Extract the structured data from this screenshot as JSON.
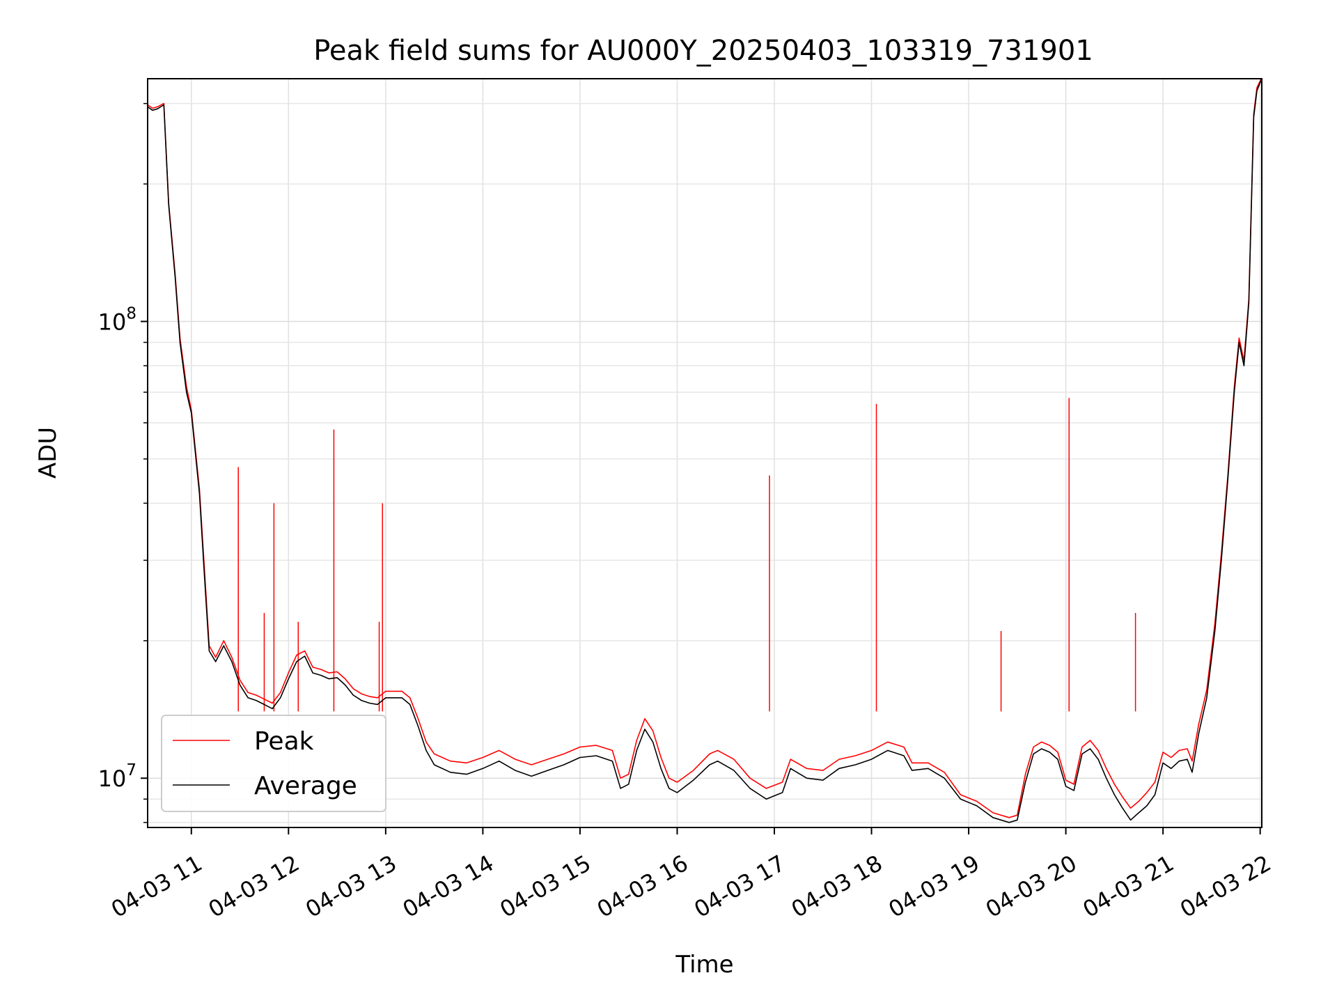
{
  "chart_data": {
    "type": "line",
    "title": "Peak field sums for AU000Y_20250403_103319_731901",
    "xlabel": "Time",
    "ylabel": "ADU",
    "yscale": "log",
    "ylim": [
      7800000,
      340000000
    ],
    "xlim": [
      "04-03 10:33",
      "04-03 22:01"
    ],
    "grid": true,
    "legend_position": "lower-left",
    "x_ticks": [
      {
        "t": "04-03 11:00",
        "label": "04-03 11"
      },
      {
        "t": "04-03 12:00",
        "label": "04-03 12"
      },
      {
        "t": "04-03 13:00",
        "label": "04-03 13"
      },
      {
        "t": "04-03 14:00",
        "label": "04-03 14"
      },
      {
        "t": "04-03 15:00",
        "label": "04-03 15"
      },
      {
        "t": "04-03 16:00",
        "label": "04-03 16"
      },
      {
        "t": "04-03 17:00",
        "label": "04-03 17"
      },
      {
        "t": "04-03 18:00",
        "label": "04-03 18"
      },
      {
        "t": "04-03 19:00",
        "label": "04-03 19"
      },
      {
        "t": "04-03 20:00",
        "label": "04-03 20"
      },
      {
        "t": "04-03 21:00",
        "label": "04-03 21"
      },
      {
        "t": "04-03 22:00",
        "label": "04-03 22"
      }
    ],
    "y_major_ticks": [
      {
        "value": 10000000,
        "base": "10",
        "exp": "7"
      },
      {
        "value": 100000000,
        "base": "10",
        "exp": "8"
      }
    ],
    "y_minor_ticks": [
      8000000,
      9000000,
      20000000,
      30000000,
      40000000,
      50000000,
      60000000,
      70000000,
      80000000,
      90000000,
      200000000,
      300000000
    ],
    "series": [
      {
        "name": "Average",
        "color": "#000000",
        "points": [
          [
            "04-03 10:33",
            295000000
          ],
          [
            "04-03 10:36",
            290000000
          ],
          [
            "04-03 10:39",
            292000000
          ],
          [
            "04-03 10:43",
            298000000
          ],
          [
            "04-03 10:46",
            180000000
          ],
          [
            "04-03 10:50",
            125000000
          ],
          [
            "04-03 10:53",
            90000000
          ],
          [
            "04-03 10:57",
            70000000
          ],
          [
            "04-03 11:00",
            63000000
          ],
          [
            "04-03 11:05",
            42000000
          ],
          [
            "04-03 11:08",
            28000000
          ],
          [
            "04-03 11:11",
            19000000
          ],
          [
            "04-03 11:15",
            18000000
          ],
          [
            "04-03 11:20",
            19500000
          ],
          [
            "04-03 11:25",
            18000000
          ],
          [
            "04-03 11:30",
            16000000
          ],
          [
            "04-03 11:35",
            15000000
          ],
          [
            "04-03 11:40",
            14800000
          ],
          [
            "04-03 11:45",
            14500000
          ],
          [
            "04-03 11:50",
            14200000
          ],
          [
            "04-03 11:55",
            15000000
          ],
          [
            "04-03 12:00",
            16500000
          ],
          [
            "04-03 12:05",
            18000000
          ],
          [
            "04-03 12:10",
            18500000
          ],
          [
            "04-03 12:15",
            17000000
          ],
          [
            "04-03 12:20",
            16800000
          ],
          [
            "04-03 12:25",
            16500000
          ],
          [
            "04-03 12:30",
            16600000
          ],
          [
            "04-03 12:35",
            16000000
          ],
          [
            "04-03 12:40",
            15200000
          ],
          [
            "04-03 12:45",
            14800000
          ],
          [
            "04-03 12:50",
            14600000
          ],
          [
            "04-03 12:55",
            14500000
          ],
          [
            "04-03 13:00",
            15000000
          ],
          [
            "04-03 13:10",
            15000000
          ],
          [
            "04-03 13:15",
            14500000
          ],
          [
            "04-03 13:20",
            13000000
          ],
          [
            "04-03 13:25",
            11500000
          ],
          [
            "04-03 13:30",
            10700000
          ],
          [
            "04-03 13:40",
            10300000
          ],
          [
            "04-03 13:50",
            10200000
          ],
          [
            "04-03 14:00",
            10500000
          ],
          [
            "04-03 14:10",
            10900000
          ],
          [
            "04-03 14:20",
            10400000
          ],
          [
            "04-03 14:30",
            10100000
          ],
          [
            "04-03 14:40",
            10400000
          ],
          [
            "04-03 14:50",
            10700000
          ],
          [
            "04-03 15:00",
            11100000
          ],
          [
            "04-03 15:10",
            11200000
          ],
          [
            "04-03 15:20",
            10900000
          ],
          [
            "04-03 15:25",
            9500000
          ],
          [
            "04-03 15:30",
            9700000
          ],
          [
            "04-03 15:35",
            11500000
          ],
          [
            "04-03 15:40",
            12800000
          ],
          [
            "04-03 15:45",
            12000000
          ],
          [
            "04-03 15:50",
            10500000
          ],
          [
            "04-03 15:55",
            9500000
          ],
          [
            "04-03 16:00",
            9300000
          ],
          [
            "04-03 16:10",
            9900000
          ],
          [
            "04-03 16:20",
            10700000
          ],
          [
            "04-03 16:25",
            10900000
          ],
          [
            "04-03 16:35",
            10400000
          ],
          [
            "04-03 16:45",
            9500000
          ],
          [
            "04-03 16:55",
            9000000
          ],
          [
            "04-03 17:05",
            9300000
          ],
          [
            "04-03 17:10",
            10500000
          ],
          [
            "04-03 17:20",
            10000000
          ],
          [
            "04-03 17:30",
            9900000
          ],
          [
            "04-03 17:40",
            10500000
          ],
          [
            "04-03 17:50",
            10700000
          ],
          [
            "04-03 18:00",
            11000000
          ],
          [
            "04-03 18:10",
            11500000
          ],
          [
            "04-03 18:20",
            11200000
          ],
          [
            "04-03 18:25",
            10400000
          ],
          [
            "04-03 18:35",
            10500000
          ],
          [
            "04-03 18:45",
            10000000
          ],
          [
            "04-03 18:55",
            9000000
          ],
          [
            "04-03 19:05",
            8700000
          ],
          [
            "04-03 19:15",
            8200000
          ],
          [
            "04-03 19:25",
            8000000
          ],
          [
            "04-03 19:30",
            8100000
          ],
          [
            "04-03 19:35",
            9800000
          ],
          [
            "04-03 19:40",
            11300000
          ],
          [
            "04-03 19:45",
            11600000
          ],
          [
            "04-03 19:50",
            11400000
          ],
          [
            "04-03 19:55",
            11000000
          ],
          [
            "04-03 20:00",
            9600000
          ],
          [
            "04-03 20:05",
            9400000
          ],
          [
            "04-03 20:10",
            11300000
          ],
          [
            "04-03 20:15",
            11600000
          ],
          [
            "04-03 20:20",
            11000000
          ],
          [
            "04-03 20:25",
            10000000
          ],
          [
            "04-03 20:30",
            9200000
          ],
          [
            "04-03 20:35",
            8600000
          ],
          [
            "04-03 20:40",
            8100000
          ],
          [
            "04-03 20:45",
            8400000
          ],
          [
            "04-03 20:50",
            8700000
          ],
          [
            "04-03 20:55",
            9200000
          ],
          [
            "04-03 21:00",
            10800000
          ],
          [
            "04-03 21:05",
            10500000
          ],
          [
            "04-03 21:10",
            10900000
          ],
          [
            "04-03 21:15",
            11000000
          ],
          [
            "04-03 21:18",
            10300000
          ],
          [
            "04-03 21:22",
            12500000
          ],
          [
            "04-03 21:27",
            15000000
          ],
          [
            "04-03 21:32",
            21000000
          ],
          [
            "04-03 21:36",
            30000000
          ],
          [
            "04-03 21:40",
            45000000
          ],
          [
            "04-03 21:44",
            70000000
          ],
          [
            "04-03 21:47",
            90000000
          ],
          [
            "04-03 21:50",
            80000000
          ],
          [
            "04-03 21:53",
            110000000
          ],
          [
            "04-03 21:56",
            280000000
          ],
          [
            "04-03 21:58",
            320000000
          ],
          [
            "04-03 22:01",
            340000000
          ]
        ]
      },
      {
        "name": "Peak",
        "color": "#ff0000",
        "points": [
          [
            "04-03 10:33",
            298000000
          ],
          [
            "04-03 10:36",
            293000000
          ],
          [
            "04-03 10:39",
            295000000
          ],
          [
            "04-03 10:43",
            300000000
          ],
          [
            "04-03 10:46",
            182000000
          ],
          [
            "04-03 10:50",
            127000000
          ],
          [
            "04-03 10:53",
            92000000
          ],
          [
            "04-03 10:57",
            72000000
          ],
          [
            "04-03 11:00",
            64000000
          ],
          [
            "04-03 11:05",
            43000000
          ],
          [
            "04-03 11:08",
            29000000
          ],
          [
            "04-03 11:11",
            19500000
          ],
          [
            "04-03 11:15",
            18400000
          ],
          [
            "04-03 11:20",
            20000000
          ],
          [
            "04-03 11:25",
            18400000
          ],
          [
            "04-03 11:30",
            16400000
          ],
          [
            "04-03 11:35",
            15400000
          ],
          [
            "04-03 11:40",
            15200000
          ],
          [
            "04-03 11:45",
            14900000
          ],
          [
            "04-03 11:50",
            14600000
          ],
          [
            "04-03 11:55",
            15400000
          ],
          [
            "04-03 12:00",
            17000000
          ],
          [
            "04-03 12:05",
            18600000
          ],
          [
            "04-03 12:10",
            19000000
          ],
          [
            "04-03 12:15",
            17500000
          ],
          [
            "04-03 12:20",
            17300000
          ],
          [
            "04-03 12:25",
            17000000
          ],
          [
            "04-03 12:30",
            17100000
          ],
          [
            "04-03 12:35",
            16500000
          ],
          [
            "04-03 12:40",
            15700000
          ],
          [
            "04-03 12:45",
            15300000
          ],
          [
            "04-03 12:50",
            15100000
          ],
          [
            "04-03 12:55",
            15000000
          ],
          [
            "04-03 13:00",
            15500000
          ],
          [
            "04-03 13:10",
            15500000
          ],
          [
            "04-03 13:15",
            15000000
          ],
          [
            "04-03 13:20",
            13500000
          ],
          [
            "04-03 13:25",
            12000000
          ],
          [
            "04-03 13:30",
            11300000
          ],
          [
            "04-03 13:40",
            10900000
          ],
          [
            "04-03 13:50",
            10800000
          ],
          [
            "04-03 14:00",
            11100000
          ],
          [
            "04-03 14:10",
            11500000
          ],
          [
            "04-03 14:20",
            11000000
          ],
          [
            "04-03 14:30",
            10700000
          ],
          [
            "04-03 14:40",
            11000000
          ],
          [
            "04-03 14:50",
            11300000
          ],
          [
            "04-03 15:00",
            11700000
          ],
          [
            "04-03 15:10",
            11800000
          ],
          [
            "04-03 15:20",
            11500000
          ],
          [
            "04-03 15:25",
            10000000
          ],
          [
            "04-03 15:30",
            10200000
          ],
          [
            "04-03 15:35",
            12100000
          ],
          [
            "04-03 15:40",
            13500000
          ],
          [
            "04-03 15:45",
            12700000
          ],
          [
            "04-03 15:50",
            11100000
          ],
          [
            "04-03 15:55",
            10000000
          ],
          [
            "04-03 16:00",
            9800000
          ],
          [
            "04-03 16:10",
            10400000
          ],
          [
            "04-03 16:20",
            11300000
          ],
          [
            "04-03 16:25",
            11500000
          ],
          [
            "04-03 16:35",
            11000000
          ],
          [
            "04-03 16:45",
            10000000
          ],
          [
            "04-03 16:55",
            9500000
          ],
          [
            "04-03 17:05",
            9800000
          ],
          [
            "04-03 17:10",
            11000000
          ],
          [
            "04-03 17:20",
            10500000
          ],
          [
            "04-03 17:30",
            10400000
          ],
          [
            "04-03 17:40",
            11000000
          ],
          [
            "04-03 17:50",
            11200000
          ],
          [
            "04-03 18:00",
            11500000
          ],
          [
            "04-03 18:10",
            12000000
          ],
          [
            "04-03 18:20",
            11700000
          ],
          [
            "04-03 18:25",
            10800000
          ],
          [
            "04-03 18:35",
            10800000
          ],
          [
            "04-03 18:45",
            10300000
          ],
          [
            "04-03 18:55",
            9200000
          ],
          [
            "04-03 19:05",
            8900000
          ],
          [
            "04-03 19:15",
            8400000
          ],
          [
            "04-03 19:25",
            8200000
          ],
          [
            "04-03 19:30",
            8300000
          ],
          [
            "04-03 19:35",
            10200000
          ],
          [
            "04-03 19:40",
            11700000
          ],
          [
            "04-03 19:45",
            12000000
          ],
          [
            "04-03 19:50",
            11800000
          ],
          [
            "04-03 19:55",
            11400000
          ],
          [
            "04-03 20:00",
            9900000
          ],
          [
            "04-03 20:05",
            9700000
          ],
          [
            "04-03 20:10",
            11700000
          ],
          [
            "04-03 20:15",
            12100000
          ],
          [
            "04-03 20:20",
            11500000
          ],
          [
            "04-03 20:25",
            10500000
          ],
          [
            "04-03 20:30",
            9700000
          ],
          [
            "04-03 20:35",
            9100000
          ],
          [
            "04-03 20:40",
            8600000
          ],
          [
            "04-03 20:45",
            8900000
          ],
          [
            "04-03 20:50",
            9300000
          ],
          [
            "04-03 20:55",
            9800000
          ],
          [
            "04-03 21:00",
            11400000
          ],
          [
            "04-03 21:05",
            11100000
          ],
          [
            "04-03 21:10",
            11500000
          ],
          [
            "04-03 21:15",
            11600000
          ],
          [
            "04-03 21:18",
            10900000
          ],
          [
            "04-03 21:22",
            13100000
          ],
          [
            "04-03 21:27",
            15600000
          ],
          [
            "04-03 21:32",
            21800000
          ],
          [
            "04-03 21:36",
            31000000
          ],
          [
            "04-03 21:40",
            46000000
          ],
          [
            "04-03 21:44",
            72000000
          ],
          [
            "04-03 21:47",
            92000000
          ],
          [
            "04-03 21:50",
            82000000
          ],
          [
            "04-03 21:53",
            112000000
          ],
          [
            "04-03 21:56",
            285000000
          ],
          [
            "04-03 21:58",
            325000000
          ],
          [
            "04-03 22:01",
            342000000
          ]
        ],
        "spikes": [
          {
            "t": "04-03 11:29",
            "value": 48000000
          },
          {
            "t": "04-03 11:45",
            "value": 23000000
          },
          {
            "t": "04-03 11:51",
            "value": 40000000
          },
          {
            "t": "04-03 12:06",
            "value": 22000000
          },
          {
            "t": "04-03 12:28",
            "value": 58000000
          },
          {
            "t": "04-03 12:56",
            "value": 22000000
          },
          {
            "t": "04-03 12:58",
            "value": 40000000
          },
          {
            "t": "04-03 16:57",
            "value": 46000000
          },
          {
            "t": "04-03 18:03",
            "value": 66000000
          },
          {
            "t": "04-03 19:20",
            "value": 21000000
          },
          {
            "t": "04-03 20:02",
            "value": 68000000
          },
          {
            "t": "04-03 20:43",
            "value": 23000000
          }
        ]
      }
    ]
  }
}
